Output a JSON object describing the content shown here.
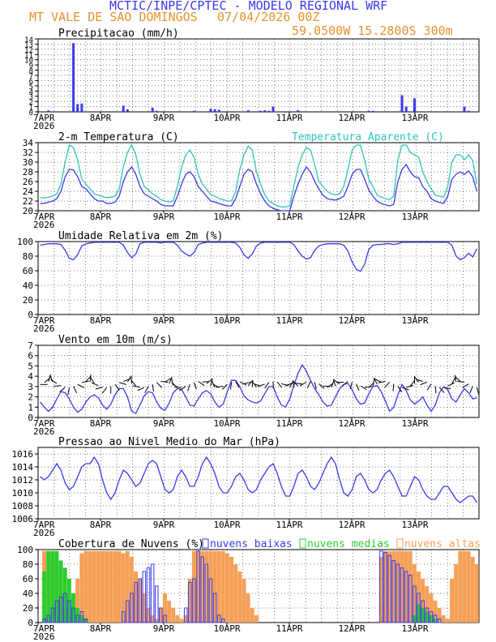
{
  "header": {
    "title": "MCTIC/INPE/CPTEC - MODELO REGIONAL WRF",
    "location": "MT VALE DE SAO DOMINGOS",
    "run": "07/04/2026 00Z",
    "coords": "59.0500W 15.2800S 300m"
  },
  "colors": {
    "blue": "#3a3aee",
    "cyan": "#2ec4b6",
    "orange": "#f5a057",
    "green": "#2ecc2e",
    "black": "#000000",
    "title_blue": "#3a3aee",
    "title_orange": "#e8922e"
  },
  "chart_data": [
    {
      "id": "precip",
      "type": "bar",
      "title": "Precipitacao (mm/h)",
      "x_labels": [
        "7APR",
        "8APR",
        "9APR",
        "10APR",
        "11APR",
        "12APR",
        "13APR"
      ],
      "year": "2026",
      "ylim": [
        0,
        14
      ],
      "yticks": [
        0,
        1,
        2,
        3,
        4,
        5,
        6,
        7,
        8,
        9,
        10,
        11,
        12,
        13,
        14
      ],
      "bars": [
        [
          2,
          0.3
        ],
        [
          8,
          13.2
        ],
        [
          9,
          1.5
        ],
        [
          10,
          1.6
        ],
        [
          20,
          1.2
        ],
        [
          21,
          0.5
        ],
        [
          27,
          0.8
        ],
        [
          28,
          0.2
        ],
        [
          37,
          0.2
        ],
        [
          41,
          0.6
        ],
        [
          42,
          0.5
        ],
        [
          43,
          0.4
        ],
        [
          50,
          0.3
        ],
        [
          53,
          0.2
        ],
        [
          54,
          0.3
        ],
        [
          55,
          0.2
        ],
        [
          56,
          1.0
        ],
        [
          62,
          0.3
        ],
        [
          79,
          0.2
        ],
        [
          80,
          0.2
        ],
        [
          87,
          3.2
        ],
        [
          88,
          1.0
        ],
        [
          90,
          2.6
        ],
        [
          102,
          1.0
        ],
        [
          103,
          0.2
        ]
      ]
    },
    {
      "id": "temp",
      "type": "line",
      "title": "2-m Temperatura (C)",
      "series_label": "Temperatura Aparente (C)",
      "ylim": [
        20,
        34
      ],
      "yticks": [
        20,
        22,
        24,
        26,
        28,
        30,
        32,
        34
      ],
      "series": [
        {
          "name": "2-m Temperatura (C)",
          "color": "blue",
          "values": [
            21.5,
            21.5,
            21.8,
            22,
            22.5,
            24,
            27,
            28.5,
            28.4,
            27,
            25,
            24.5,
            23.5,
            22.5,
            22,
            22,
            21.5,
            21.5,
            21.8,
            23,
            26,
            28,
            29,
            27.5,
            25,
            23.5,
            23,
            22.5,
            22,
            21.3,
            21,
            21,
            21,
            23,
            25.5,
            27.5,
            28,
            27,
            25,
            24,
            23,
            22,
            21.8,
            21.5,
            21.2,
            21,
            21,
            22.5,
            25,
            27.5,
            28.5,
            28,
            25.5,
            23.5,
            22,
            21,
            20.5,
            20.2,
            20,
            20,
            20,
            23,
            25.5,
            27.5,
            29,
            28,
            26,
            24.5,
            23.2,
            22.5,
            22.3,
            22.2,
            22.5,
            23,
            25,
            27.5,
            28.5,
            28.5,
            26.5,
            24.3,
            23,
            22,
            21.5,
            21.2,
            21,
            21.3,
            26,
            28.5,
            29.5,
            28,
            27,
            26.8,
            25,
            24,
            22.5,
            22,
            21.7,
            21.5,
            23,
            26.5,
            27.5,
            28,
            27.5,
            28.2,
            27,
            24
          ]
        },
        {
          "name": "Temperatura Aparente (C)",
          "color": "cyan",
          "values": [
            22.7,
            22.6,
            22.8,
            23,
            23.5,
            25.5,
            30,
            33.5,
            33,
            30.5,
            26.5,
            25.5,
            24.5,
            23.5,
            23.2,
            22.9,
            22.7,
            22.8,
            23,
            24.5,
            29,
            32,
            33.5,
            31.5,
            27.5,
            25,
            24.3,
            23.5,
            23,
            22.3,
            22,
            21.8,
            22,
            25,
            29,
            31.5,
            32.5,
            31,
            27.5,
            25.5,
            24.5,
            23.3,
            23,
            22.5,
            22.3,
            22,
            22,
            24,
            28.5,
            31.5,
            33.3,
            32.5,
            28,
            25.5,
            23.3,
            22,
            21.5,
            21,
            20.8,
            20.8,
            21,
            25,
            29,
            31.5,
            33,
            32.5,
            29.5,
            26,
            25,
            24,
            23.5,
            23.3,
            23.5,
            25,
            28.5,
            32.5,
            33.5,
            33.5,
            30.5,
            26.5,
            25,
            23.2,
            22.8,
            22.5,
            22.3,
            23,
            30.5,
            33.5,
            33.5,
            32,
            31.5,
            31,
            28,
            26,
            24.5,
            23.2,
            23,
            22.8,
            25,
            30,
            31.5,
            31.5,
            30.5,
            31.5,
            30.3,
            25.5
          ]
        }
      ]
    },
    {
      "id": "rh",
      "type": "line",
      "title": "Umidade Relativa em 2m (%)",
      "ylim": [
        0,
        100
      ],
      "yticks": [
        0,
        20,
        40,
        60,
        80,
        100
      ],
      "series": [
        {
          "name": "Umidade Relativa em 2m (%)",
          "color": "blue",
          "values": [
            95,
            96,
            97,
            97,
            97,
            96,
            88,
            77,
            75,
            82,
            94,
            97,
            98,
            99,
            99,
            99,
            99,
            99,
            99,
            99,
            95,
            85,
            78,
            83,
            97,
            99,
            99,
            99,
            99,
            98,
            99,
            99,
            99,
            95,
            87,
            83,
            80,
            85,
            96,
            98,
            99,
            99,
            99,
            99,
            99,
            99,
            99,
            98,
            92,
            82,
            77,
            83,
            94,
            98,
            99,
            99,
            99,
            99,
            99,
            99,
            99,
            96,
            87,
            80,
            76,
            78,
            88,
            94,
            96,
            97,
            97,
            97,
            97,
            95,
            87,
            72,
            62,
            59,
            69,
            89,
            95,
            96,
            96,
            97,
            97,
            96,
            97,
            99,
            99,
            99,
            99,
            99,
            99,
            99,
            99,
            99,
            99,
            99,
            99,
            95,
            80,
            75,
            78,
            84,
            79,
            90
          ]
        }
      ]
    },
    {
      "id": "wind",
      "type": "line",
      "title": "Vento em 10m (m/s)",
      "ylim": [
        0,
        7
      ],
      "yticks": [
        0,
        1,
        2,
        3,
        4,
        5,
        6,
        7
      ],
      "series": [
        {
          "name": "Vento em 10m (m/s)",
          "color": "blue",
          "values": [
            1.5,
            1,
            0.6,
            1,
            1.8,
            2.5,
            2.4,
            1.8,
            1,
            0.5,
            0.8,
            1.5,
            2,
            2.2,
            1.9,
            1.2,
            0.8,
            1.3,
            2.2,
            2.8,
            2.8,
            2,
            0.6,
            0.4,
            1.2,
            2.1,
            2.5,
            2.4,
            1.5,
            0.9,
            0.7,
            1.4,
            2.4,
            2.8,
            2.7,
            2,
            1.2,
            1.1,
            1.8,
            2.4,
            2.6,
            2.3,
            1.5,
            1,
            1.3,
            2.5,
            3.6,
            3.6,
            3,
            2.1,
            1.7,
            1.5,
            1.4,
            1.6,
            2.3,
            3,
            3,
            2,
            1.2,
            1,
            1.8,
            3.1,
            4.3,
            5.1,
            4.5,
            3.6,
            2.8,
            2.2,
            1.5,
            1.1,
            1.2,
            2,
            2.8,
            3.2,
            3.3,
            2.7,
            1.8,
            1.3,
            1.4,
            2.3,
            3,
            3.1,
            2.5,
            1.6,
            0.6,
            1,
            2.2,
            3.2,
            2.6,
            1.7,
            1.3,
            1.6,
            2,
            1.2,
            0.6,
            1.2,
            2.4,
            3,
            2.7,
            1.8,
            1.5,
            2.2,
            2.8,
            2.4,
            1.8,
            1.9
          ]
        }
      ],
      "barbs": "wind direction arrows along ~3 m/s line"
    },
    {
      "id": "slp",
      "type": "line",
      "title": "Pressao ao Nivel Medio do Mar (hPa)",
      "ylim": [
        1006,
        1017
      ],
      "yticks": [
        1006,
        1008,
        1010,
        1012,
        1014,
        1016
      ],
      "series": [
        {
          "name": "Pressao ao Nivel Medio do Mar (hPa)",
          "color": "blue",
          "values": [
            1012.5,
            1012,
            1012.5,
            1013.5,
            1014.5,
            1013.5,
            1011.5,
            1010.5,
            1011,
            1012.5,
            1014,
            1014.5,
            1014.5,
            1015.5,
            1014.5,
            1012,
            1010,
            1009,
            1010,
            1012,
            1013.5,
            1013,
            1012,
            1011,
            1011.5,
            1013,
            1014.5,
            1015,
            1014.5,
            1012.5,
            1010.5,
            1010,
            1010.5,
            1012.5,
            1013.5,
            1012.5,
            1011,
            1011,
            1012.5,
            1014.5,
            1015.5,
            1014.5,
            1013,
            1011,
            1010,
            1010,
            1011,
            1012.5,
            1013,
            1012,
            1010.5,
            1010,
            1010.5,
            1012,
            1013,
            1014,
            1014.5,
            1013,
            1011,
            1009.5,
            1009.5,
            1011,
            1013,
            1013.5,
            1012.5,
            1011,
            1010.5,
            1011.5,
            1013,
            1014.5,
            1015.5,
            1014.5,
            1012,
            1010,
            1009.5,
            1010.5,
            1012.5,
            1013,
            1012,
            1010.5,
            1010,
            1010.5,
            1012,
            1013,
            1013.5,
            1012.5,
            1011,
            1009.5,
            1009.5,
            1011,
            1012.5,
            1012,
            1010.5,
            1009.5,
            1009,
            1009,
            1010,
            1011,
            1011,
            1010,
            1009,
            1008.5,
            1009,
            1009.5,
            1009.5,
            1008.5
          ]
        }
      ]
    },
    {
      "id": "cloud",
      "type": "bar",
      "title": "Cobertura de Nuvens (%)",
      "ylim": [
        0,
        100
      ],
      "yticks": [
        0,
        20,
        40,
        60,
        80,
        100
      ],
      "legend": [
        "nuvens baixas",
        "nuvens medias",
        "nuvens altas"
      ],
      "series": [
        {
          "name": "nuvens baixas",
          "color": "blue",
          "values": [
            0,
            5,
            10,
            20,
            30,
            35,
            40,
            30,
            20,
            10,
            15,
            5,
            0,
            0,
            0,
            0,
            0,
            0,
            0,
            0,
            15,
            30,
            40,
            55,
            60,
            70,
            75,
            80,
            50,
            20,
            10,
            0,
            0,
            0,
            0,
            20,
            55,
            60,
            98,
            90,
            80,
            60,
            40,
            10,
            5,
            0,
            0,
            0,
            0,
            0,
            0,
            0,
            0,
            0,
            0,
            0,
            0,
            0,
            0,
            0,
            0,
            0,
            0,
            0,
            0,
            0,
            0,
            0,
            0,
            0,
            0,
            0,
            0,
            0,
            0,
            0,
            0,
            0,
            0,
            0,
            0,
            0,
            98,
            96,
            92,
            85,
            80,
            75,
            70,
            65,
            50,
            40,
            30,
            20,
            15,
            10,
            5,
            0,
            0,
            0,
            0,
            0,
            0,
            0,
            0,
            0
          ]
        },
        {
          "name": "nuvens medias",
          "color": "green",
          "values": [
            0,
            70,
            98,
            98,
            98,
            85,
            75,
            60,
            40,
            20,
            10,
            5,
            0,
            0,
            0,
            0,
            0,
            0,
            0,
            0,
            0,
            0,
            0,
            0,
            0,
            0,
            0,
            0,
            0,
            0,
            0,
            0,
            0,
            0,
            0,
            0,
            0,
            0,
            0,
            0,
            0,
            0,
            0,
            0,
            0,
            0,
            0,
            0,
            0,
            0,
            0,
            0,
            0,
            0,
            0,
            0,
            0,
            0,
            0,
            0,
            0,
            0,
            0,
            0,
            0,
            0,
            0,
            0,
            0,
            0,
            0,
            0,
            0,
            0,
            0,
            0,
            0,
            0,
            0,
            0,
            0,
            0,
            0,
            0,
            0,
            0,
            0,
            0,
            0,
            0,
            10,
            25,
            20,
            15,
            10,
            5,
            0,
            0,
            0,
            0,
            0,
            0,
            0,
            0,
            0,
            0
          ]
        },
        {
          "name": "nuvens altas",
          "color": "orange",
          "values": [
            0,
            98,
            98,
            95,
            85,
            60,
            40,
            20,
            10,
            60,
            95,
            98,
            98,
            98,
            98,
            98,
            98,
            98,
            98,
            98,
            95,
            98,
            90,
            70,
            60,
            40,
            20,
            10,
            5,
            20,
            40,
            30,
            20,
            10,
            5,
            10,
            60,
            98,
            98,
            98,
            98,
            98,
            98,
            98,
            98,
            95,
            90,
            80,
            70,
            60,
            40,
            20,
            10,
            0,
            0,
            0,
            0,
            0,
            0,
            0,
            0,
            0,
            0,
            0,
            0,
            0,
            0,
            0,
            0,
            0,
            0,
            0,
            0,
            0,
            0,
            0,
            0,
            0,
            0,
            0,
            0,
            0,
            90,
            98,
            98,
            98,
            98,
            98,
            98,
            98,
            80,
            70,
            60,
            50,
            40,
            30,
            20,
            10,
            5,
            60,
            80,
            98,
            98,
            98,
            90,
            80
          ]
        }
      ]
    }
  ]
}
